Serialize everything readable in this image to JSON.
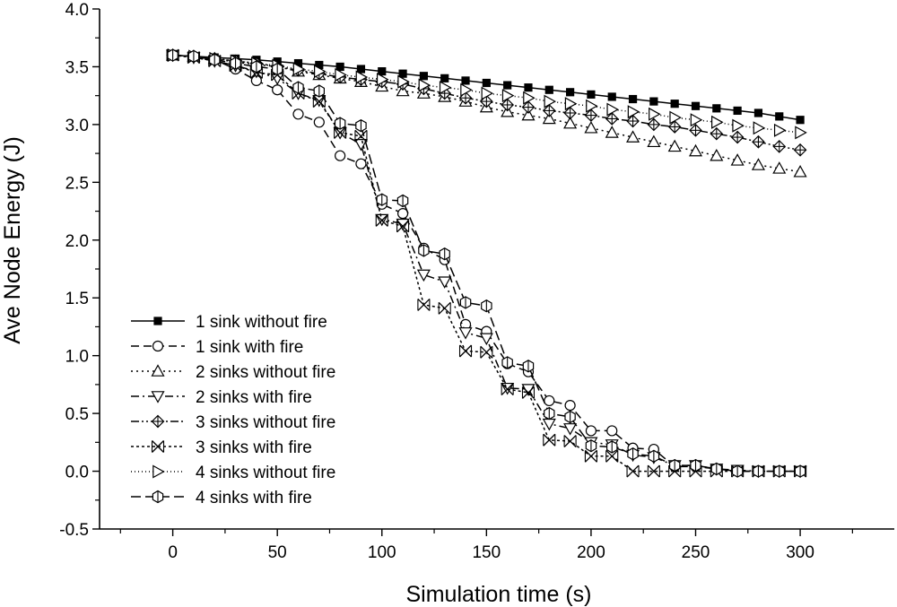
{
  "chart_data": {
    "type": "line",
    "xlabel": "Simulation time (s)",
    "ylabel": "Ave Node Energy (J)",
    "xlim": [
      -35,
      345
    ],
    "ylim": [
      -0.5,
      4.0
    ],
    "xticks": [
      0,
      50,
      100,
      150,
      200,
      250,
      300
    ],
    "yticks": [
      -0.5,
      0.0,
      0.5,
      1.0,
      1.5,
      2.0,
      2.5,
      3.0,
      3.5,
      4.0
    ],
    "ytick_labels": [
      "-0.5",
      "0.0",
      "0.5",
      "1.0",
      "1.5",
      "2.0",
      "2.5",
      "3.0",
      "3.5",
      "4.0"
    ],
    "grid": false,
    "legend_position": "bottom-left",
    "x": [
      0,
      10,
      20,
      30,
      40,
      50,
      60,
      70,
      80,
      90,
      100,
      110,
      120,
      130,
      140,
      150,
      160,
      170,
      180,
      190,
      200,
      210,
      220,
      230,
      240,
      250,
      260,
      270,
      280,
      290,
      300
    ],
    "series": [
      {
        "name": "1 sink without fire",
        "marker": "square-filled",
        "dash": "solid",
        "values": [
          3.6,
          3.59,
          3.58,
          3.57,
          3.56,
          3.545,
          3.53,
          3.515,
          3.5,
          3.48,
          3.46,
          3.44,
          3.42,
          3.4,
          3.38,
          3.36,
          3.34,
          3.32,
          3.3,
          3.28,
          3.26,
          3.24,
          3.22,
          3.2,
          3.18,
          3.16,
          3.14,
          3.12,
          3.1,
          3.07,
          3.04
        ]
      },
      {
        "name": "1 sink with fire",
        "marker": "circle",
        "dash": "dash",
        "values": [
          3.6,
          3.59,
          3.56,
          3.48,
          3.38,
          3.3,
          3.09,
          3.02,
          2.73,
          2.66,
          2.31,
          2.23,
          1.93,
          1.83,
          1.27,
          1.21,
          0.93,
          0.86,
          0.61,
          0.57,
          0.35,
          0.35,
          0.2,
          0.19,
          0.04,
          0.04,
          0.02,
          0.0,
          0.0,
          0.0,
          0.0
        ]
      },
      {
        "name": "2 sinks without fire",
        "marker": "triangle-up",
        "dash": "dot",
        "values": [
          3.6,
          3.59,
          3.57,
          3.54,
          3.52,
          3.5,
          3.46,
          3.43,
          3.4,
          3.37,
          3.33,
          3.29,
          3.27,
          3.24,
          3.2,
          3.15,
          3.11,
          3.08,
          3.05,
          3.01,
          2.97,
          2.93,
          2.89,
          2.85,
          2.81,
          2.77,
          2.73,
          2.69,
          2.65,
          2.62,
          2.59
        ]
      },
      {
        "name": "2 sinks with fire",
        "marker": "triangle-down",
        "dash": "dashdot",
        "values": [
          3.6,
          3.58,
          3.55,
          3.51,
          3.46,
          3.4,
          3.27,
          3.21,
          2.93,
          2.83,
          2.18,
          2.14,
          1.7,
          1.64,
          1.2,
          1.15,
          0.72,
          0.71,
          0.41,
          0.37,
          0.25,
          0.23,
          0.14,
          0.12,
          0.05,
          0.05,
          0.02,
          0.01,
          0.0,
          0.0,
          0.0
        ]
      },
      {
        "name": "3 sinks without fire",
        "marker": "diamond-plus",
        "dash": "dashdotdot",
        "values": [
          3.6,
          3.59,
          3.57,
          3.55,
          3.53,
          3.5,
          3.47,
          3.44,
          3.41,
          3.39,
          3.37,
          3.35,
          3.31,
          3.27,
          3.23,
          3.2,
          3.17,
          3.15,
          3.12,
          3.1,
          3.08,
          3.05,
          3.03,
          3.0,
          2.98,
          2.95,
          2.92,
          2.89,
          2.85,
          2.81,
          2.78
        ]
      },
      {
        "name": "3 sinks with fire",
        "marker": "x-box",
        "dash": "shortdot",
        "values": [
          3.6,
          3.58,
          3.55,
          3.51,
          3.45,
          3.43,
          3.27,
          3.2,
          2.93,
          2.9,
          2.17,
          2.12,
          1.44,
          1.41,
          1.04,
          1.03,
          0.71,
          0.68,
          0.27,
          0.26,
          0.13,
          0.13,
          0.0,
          0.0,
          0.0,
          0.0,
          0.0,
          0.0,
          0.0,
          0.0,
          0.0
        ]
      },
      {
        "name": "4 sinks without fire",
        "marker": "triangle-right",
        "dash": "fine-dot",
        "values": [
          3.6,
          3.59,
          3.57,
          3.55,
          3.53,
          3.51,
          3.48,
          3.46,
          3.43,
          3.41,
          3.39,
          3.37,
          3.34,
          3.32,
          3.3,
          3.27,
          3.25,
          3.23,
          3.2,
          3.18,
          3.16,
          3.13,
          3.11,
          3.09,
          3.06,
          3.04,
          3.02,
          2.99,
          2.97,
          2.95,
          2.93
        ]
      },
      {
        "name": "4 sinks with fire",
        "marker": "hexagon-line",
        "dash": "longdash",
        "values": [
          3.6,
          3.59,
          3.56,
          3.53,
          3.5,
          3.48,
          3.32,
          3.29,
          3.01,
          2.99,
          2.35,
          2.34,
          1.91,
          1.88,
          1.46,
          1.43,
          0.94,
          0.91,
          0.5,
          0.47,
          0.22,
          0.21,
          0.15,
          0.13,
          0.05,
          0.05,
          0.02,
          0.0,
          0.0,
          0.0,
          0.0
        ]
      }
    ]
  }
}
